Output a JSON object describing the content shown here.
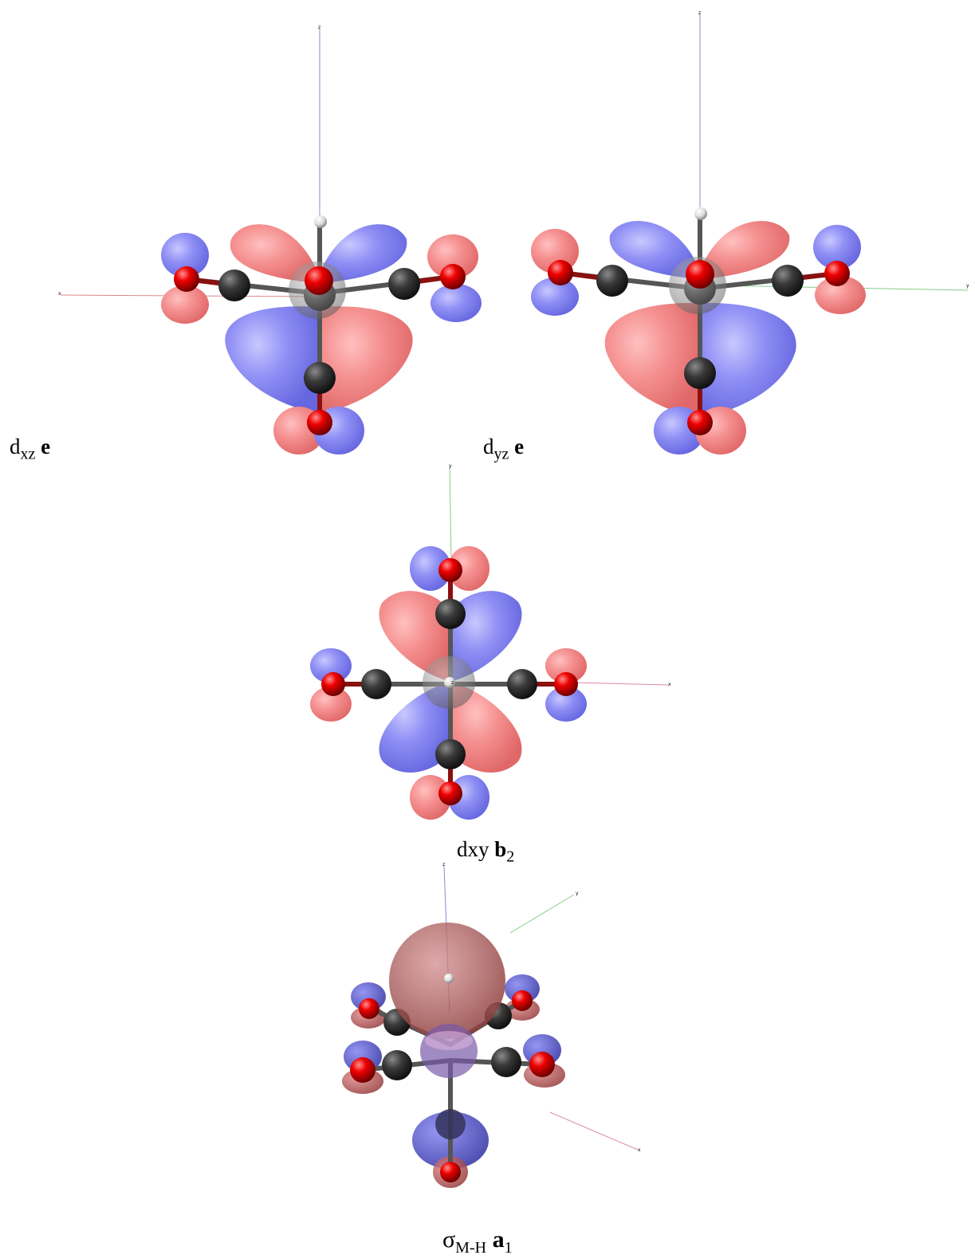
{
  "panels": [
    {
      "id": "dxz",
      "caption": {
        "main": "d",
        "sub": "xz",
        "label": "e",
        "label_sub": ""
      },
      "axes": [
        "z",
        "x"
      ]
    },
    {
      "id": "dyz",
      "caption": {
        "main": "d",
        "sub": "yz",
        "label": "e",
        "label_sub": ""
      },
      "axes": [
        "z",
        "y"
      ]
    },
    {
      "id": "dxy",
      "caption": {
        "main": "dxy ",
        "sub": "",
        "label": "b",
        "label_sub": "2"
      },
      "axes": [
        "y",
        "z",
        "x"
      ]
    },
    {
      "id": "sigma",
      "caption": {
        "main": "σ",
        "sub": "M-H",
        "label": "a",
        "label_sub": "1"
      },
      "axes": [
        "z",
        "y",
        "x"
      ]
    }
  ],
  "colors": {
    "positive_lobe": "#f08080",
    "negative_lobe": "#7b7bf0",
    "oxygen": "#e00000",
    "carbon": "#333333",
    "hydrogen": "#eeeeee",
    "z_axis": "#7777dd",
    "x_axis": "#dd7777",
    "y_axis": "#77cc77"
  }
}
